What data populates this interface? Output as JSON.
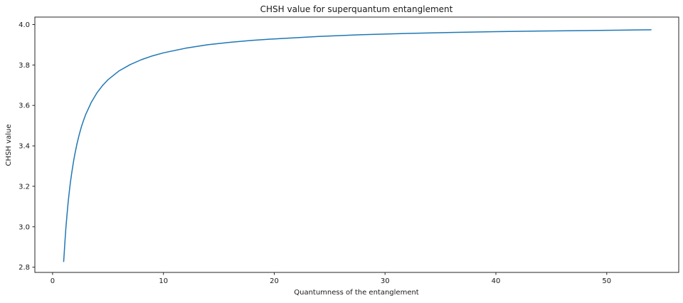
{
  "chart_data": {
    "type": "line",
    "title": "CHSH value for superquantum entanglement",
    "xlabel": "Quantumness of the entanglement",
    "ylabel": "CHSH value",
    "xlim": [
      -1.6,
      56.5
    ],
    "ylim": [
      2.774,
      4.037
    ],
    "xticks": {
      "values": [
        0,
        10,
        20,
        30,
        40,
        50
      ],
      "labels": [
        "0",
        "10",
        "20",
        "30",
        "40",
        "50"
      ]
    },
    "yticks": {
      "values": [
        2.8,
        3.0,
        3.2,
        3.4,
        3.6,
        3.8,
        4.0
      ],
      "labels": [
        "2.8",
        "3.0",
        "3.2",
        "3.4",
        "3.6",
        "3.8",
        "4.0"
      ]
    },
    "grid": false,
    "legend_visible": false,
    "background_color": "#ffffff",
    "axis_color": "#262626",
    "line_color": "#1f77b4",
    "series": [
      {
        "name": "CHSH value",
        "x": [
          1,
          1.1,
          1.2,
          1.3,
          1.4,
          1.5,
          1.6,
          1.7,
          1.8,
          1.9,
          2,
          2.2,
          2.4,
          2.6,
          2.8,
          3,
          3.5,
          4,
          4.5,
          5,
          6,
          7,
          8,
          9,
          10,
          12,
          14,
          16,
          18,
          20,
          24,
          28,
          32,
          36,
          40,
          44,
          48,
          52,
          54
        ],
        "y": [
          2.828,
          2.917,
          2.994,
          3.06,
          3.118,
          3.17,
          3.215,
          3.256,
          3.293,
          3.326,
          3.357,
          3.41,
          3.455,
          3.494,
          3.527,
          3.557,
          3.616,
          3.662,
          3.698,
          3.727,
          3.771,
          3.802,
          3.826,
          3.845,
          3.86,
          3.883,
          3.9,
          3.912,
          3.922,
          3.929,
          3.941,
          3.95,
          3.956,
          3.961,
          3.965,
          3.968,
          3.97,
          3.973,
          3.974
        ]
      }
    ]
  }
}
